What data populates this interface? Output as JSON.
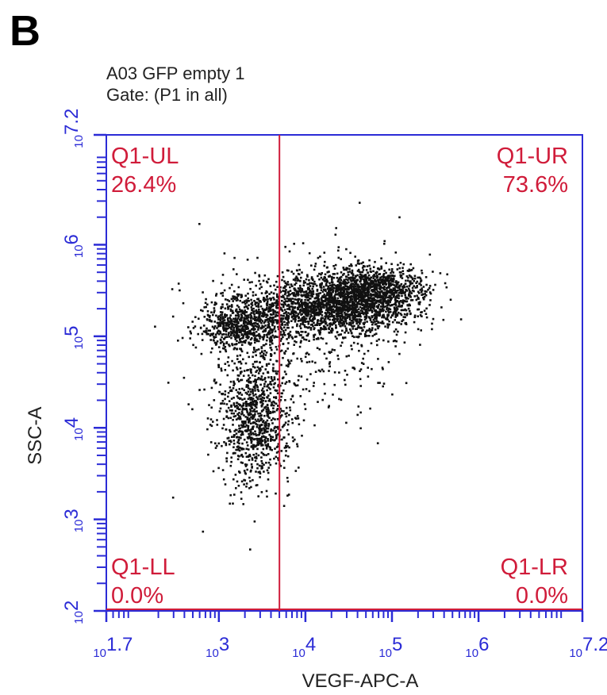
{
  "panel_label": "B",
  "header": {
    "sample_name": "A03 GFP empty 1",
    "gate": "Gate: (P1 in all)"
  },
  "colors": {
    "axis": "#2b2bd6",
    "gate_line": "#d01c3a",
    "quadrant_text": "#d01c3a",
    "events": "#111111"
  },
  "chart_data": {
    "type": "scatter",
    "xlabel": "VEGF-APC-A",
    "ylabel": "SSC-A",
    "x_scale": "log",
    "y_scale": "log",
    "xlim": [
      1.7,
      7.2
    ],
    "ylim": [
      2,
      7.2
    ],
    "x_ticks": [
      {
        "base": "10",
        "exp": "1.7",
        "value": 1.7
      },
      {
        "base": "10",
        "exp": "3",
        "value": 3
      },
      {
        "base": "10",
        "exp": "4",
        "value": 4
      },
      {
        "base": "10",
        "exp": "5",
        "value": 5
      },
      {
        "base": "10",
        "exp": "6",
        "value": 6
      },
      {
        "base": "10",
        "exp": "7.2",
        "value": 7.2
      }
    ],
    "y_ticks": [
      {
        "base": "10",
        "exp": "2",
        "value": 2
      },
      {
        "base": "10",
        "exp": "3",
        "value": 3
      },
      {
        "base": "10",
        "exp": "4",
        "value": 4
      },
      {
        "base": "10",
        "exp": "5",
        "value": 5
      },
      {
        "base": "10",
        "exp": "6",
        "value": 6
      },
      {
        "base": "10",
        "exp": "7.2",
        "value": 7.2
      }
    ],
    "gate_vertical_x": 3.7,
    "gate_horizontal_y": 2,
    "quadrants": [
      {
        "name": "Q1-UL",
        "percent": "26.4%"
      },
      {
        "name": "Q1-UR",
        "percent": "73.6%"
      },
      {
        "name": "Q1-LL",
        "percent": "0.0%"
      },
      {
        "name": "Q1-LR",
        "percent": "0.0%"
      }
    ],
    "populations": [
      {
        "cx": 3.4,
        "cy": 4.1,
        "sx": 0.22,
        "sy": 0.35,
        "n": 900
      },
      {
        "cx": 3.3,
        "cy": 5.15,
        "sx": 0.25,
        "sy": 0.14,
        "n": 700
      },
      {
        "cx": 4.35,
        "cy": 5.35,
        "sx": 0.42,
        "sy": 0.16,
        "n": 1800
      },
      {
        "cx": 4.8,
        "cy": 5.55,
        "sx": 0.28,
        "sy": 0.12,
        "n": 700
      },
      {
        "cx": 3.9,
        "cy": 5.0,
        "sx": 0.6,
        "sy": 0.45,
        "n": 500
      }
    ]
  }
}
